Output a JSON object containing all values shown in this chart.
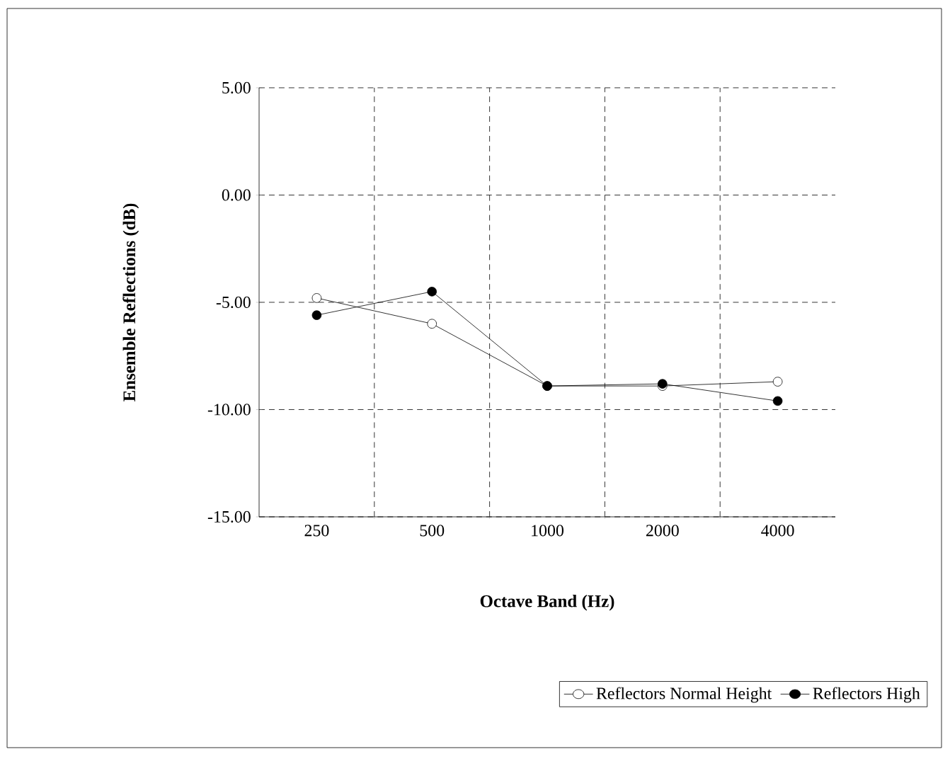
{
  "chart_data": {
    "type": "line",
    "xlabel": "Octave Band (Hz)",
    "ylabel": "Ensemble Reflections (dB)",
    "categories": [
      "250",
      "500",
      "1000",
      "2000",
      "4000"
    ],
    "series": [
      {
        "name": "Reflectors Normal Height",
        "color": "#000000",
        "values": [
          -4.8,
          -6.0,
          -8.9,
          -8.9,
          -8.7
        ]
      },
      {
        "name": "Reflectors High",
        "color": "#000000",
        "values": [
          -5.6,
          -4.5,
          -8.9,
          -8.8,
          -9.6
        ]
      }
    ],
    "ylim": [
      -15,
      5
    ],
    "yticks": [
      {
        "value": 5,
        "label": "5.00"
      },
      {
        "value": 0,
        "label": "0.00"
      },
      {
        "value": -5,
        "label": "-5.00"
      },
      {
        "value": -10,
        "label": "-10.00"
      },
      {
        "value": -15,
        "label": "-15.00"
      }
    ],
    "grid": true,
    "legend": "bottom",
    "marker": "circle",
    "line_style": "solid"
  }
}
